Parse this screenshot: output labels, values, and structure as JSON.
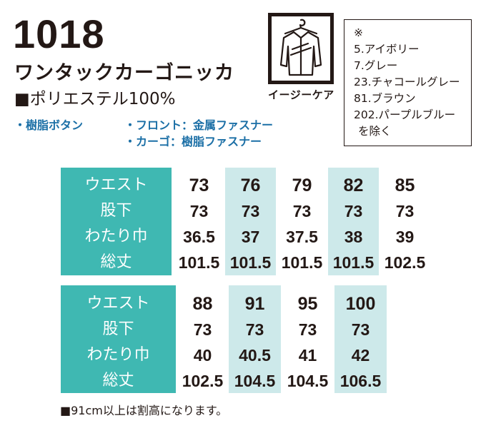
{
  "model_number": "1018",
  "product_name": "ワンタックカーゴニッカ",
  "material": "■ポリエステル100%",
  "features": {
    "buttons": "・樹脂ボタン",
    "front": "・フロント：金属ファスナー",
    "cargo": "・カーゴ：樹脂ファスナー"
  },
  "easy_care_label": "イージーケア",
  "color_note": {
    "mark": "※",
    "lines": [
      "5.アイボリー",
      "7.グレー",
      "23.チャコールグレー",
      "81.ブラウン",
      "202.パープルブルー"
    ],
    "suffix": "を除く"
  },
  "size_table": {
    "row_labels": [
      "ウエスト",
      "股下",
      "わたり巾",
      "総丈"
    ],
    "table1": {
      "waist": [
        "73",
        "76",
        "79",
        "82",
        "85"
      ],
      "inseam": [
        "73",
        "73",
        "73",
        "73",
        "73"
      ],
      "thigh": [
        "36.5",
        "37",
        "37.5",
        "38",
        "39"
      ],
      "length": [
        "101.5",
        "101.5",
        "101.5",
        "101.5",
        "102.5"
      ]
    },
    "table2": {
      "waist": [
        "88",
        "91",
        "95",
        "100"
      ],
      "inseam": [
        "73",
        "73",
        "73",
        "73"
      ],
      "thigh": [
        "40",
        "40.5",
        "41",
        "42"
      ],
      "length": [
        "102.5",
        "104.5",
        "104.5",
        "106.5"
      ]
    }
  },
  "footnote": "■91cm以上は割高になります。",
  "colors": {
    "band": "#3fb8b2",
    "highlight": "#cde9ea",
    "feature_text": "#1b6fa6",
    "ink": "#231815"
  }
}
